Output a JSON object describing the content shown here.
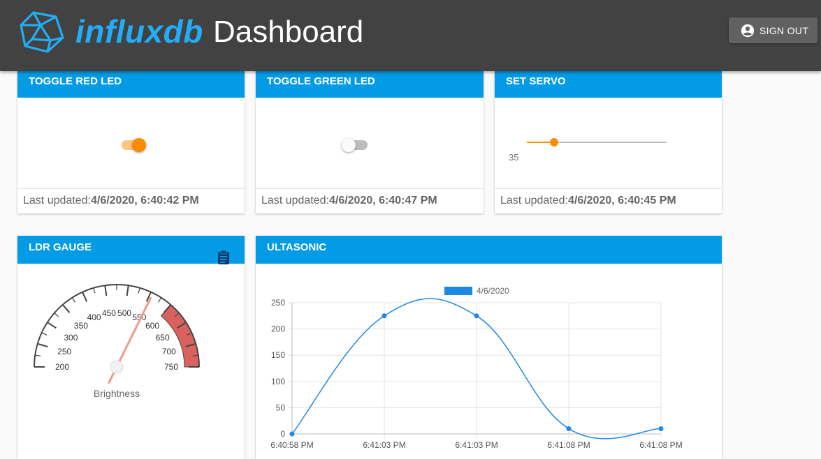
{
  "header": {
    "brand": "influxdb",
    "title": "Dashboard",
    "signout_label": "SIGN OUT"
  },
  "colors": {
    "appbar": "#424242",
    "brand": "#22adf6",
    "card_header": "#039be5",
    "toggle_on": "#fb8c00",
    "gauge_red": "#d9625f",
    "line": "#1e88e5"
  },
  "cards": {
    "red": {
      "title": "TOGGLE RED LED",
      "on": true,
      "updated_label": "Last updated:",
      "updated_time": "4/6/2020, 6:40:42 PM"
    },
    "green": {
      "title": "TOGGLE GREEN LED",
      "on": false,
      "updated_label": "Last updated:",
      "updated_time": "4/6/2020, 6:40:47 PM"
    },
    "servo": {
      "title": "SET SERVO",
      "value": 35,
      "value_label": "35",
      "min": 0,
      "max": 180,
      "updated_label": "Last updated:",
      "updated_time": "4/6/2020, 6:40:45 PM"
    }
  },
  "gauge": {
    "title": "LDR GAUGE",
    "label": "Brightness",
    "min": 200,
    "max": 750,
    "ticks": [
      "200",
      "250",
      "300",
      "350",
      "400",
      "450",
      "500",
      "550",
      "600",
      "650",
      "700",
      "750"
    ],
    "red_from": 600,
    "value": 555,
    "icon": "clipboard-icon"
  },
  "chart_data": {
    "type": "line",
    "title": "ULTASONIC",
    "series": [
      {
        "name": "4/6/2020",
        "values": [
          0,
          225,
          225,
          10,
          10
        ]
      }
    ],
    "categories": [
      "6:40:58 PM",
      "6:41:03 PM",
      "6:41:03 PM",
      "6:41:08 PM",
      "6:41:08 PM"
    ],
    "ylim": [
      0,
      250
    ],
    "yticks": [
      "0",
      "50",
      "100",
      "150",
      "200",
      "250"
    ],
    "xlabel": "",
    "ylabel": "",
    "legend": "top"
  }
}
